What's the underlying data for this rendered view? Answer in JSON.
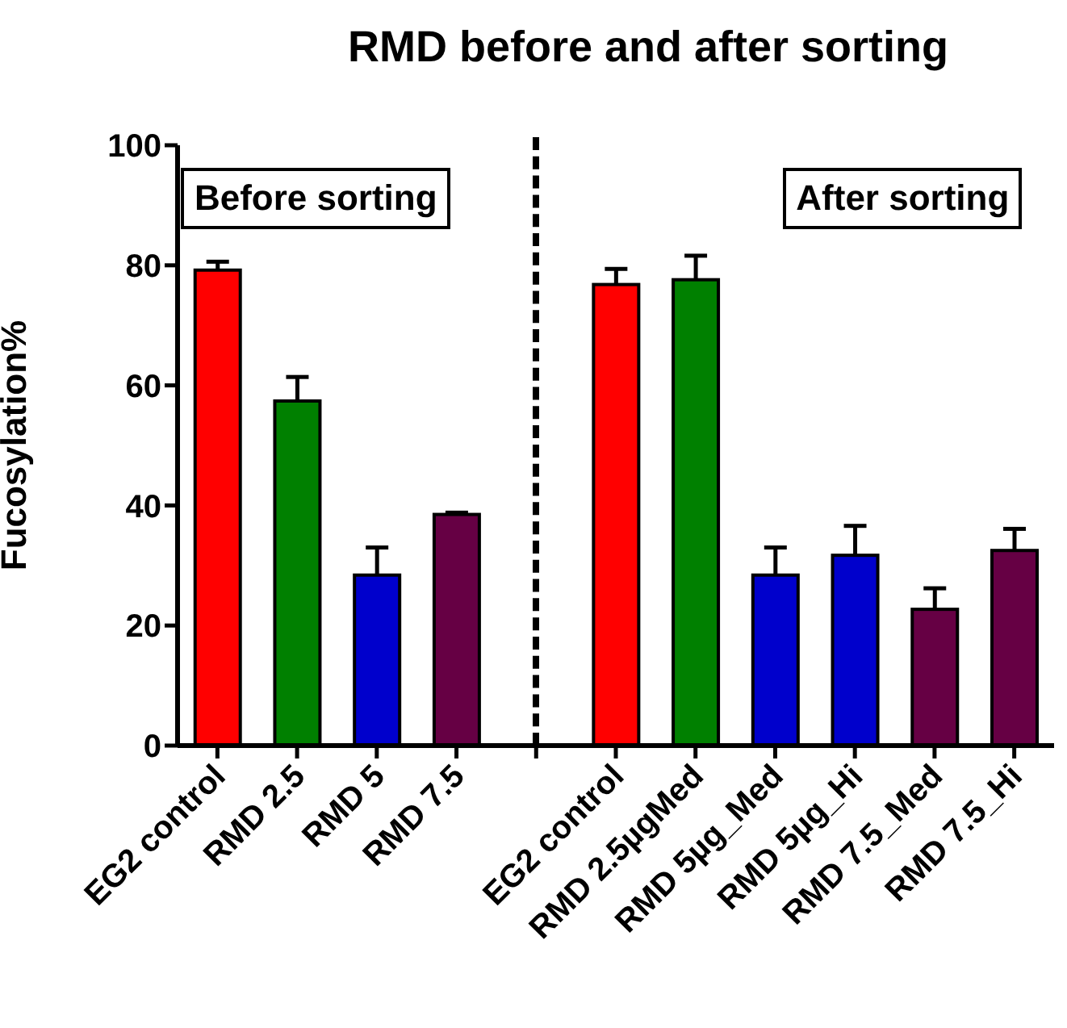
{
  "chart_data": {
    "type": "bar",
    "title": "RMD before and after sorting",
    "ylabel": "Fucosylation%",
    "categories": [
      "EG2 control",
      "RMD 2.5",
      "RMD 5",
      "RMD 7.5",
      null,
      "EG2 control",
      "RMD 2.5µgMed",
      "RMD 5µg_Med",
      "RMD 5µg_Hi",
      "RMD 7.5_Med",
      "RMD 7.5_Hi"
    ],
    "values": [
      79.2,
      57.4,
      28.4,
      38.5,
      null,
      76.8,
      77.6,
      28.4,
      31.7,
      22.7,
      32.5
    ],
    "errors": [
      [
        79.2,
        80.6
      ],
      [
        57.4,
        61.4
      ],
      [
        28.4,
        33
      ],
      [
        38.5,
        38.8
      ],
      null,
      [
        76.8,
        79.4
      ],
      [
        77.6,
        81.6
      ],
      [
        28.4,
        33
      ],
      [
        31.7,
        36.6
      ],
      [
        22.7,
        26.2
      ],
      [
        32.5,
        36.1
      ]
    ],
    "colors": [
      "#ff0000",
      "#008000",
      "#0000cc",
      "#660044",
      null,
      "#ff0000",
      "#008000",
      "#0000cc",
      "#0000cc",
      "#660044",
      "#660044"
    ],
    "annotations": [
      "Before sorting",
      "After sorting"
    ],
    "ylim": [
      0,
      100
    ],
    "yticks": [
      0,
      20,
      40,
      60,
      80,
      100
    ],
    "legend": false
  }
}
